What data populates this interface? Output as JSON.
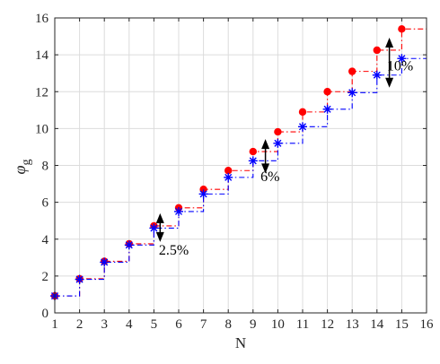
{
  "chart_data": {
    "type": "line",
    "xlabel": "N",
    "ylabel_symbol": "φ",
    "ylabel_subscript": "g",
    "xlim": [
      1,
      16
    ],
    "ylim": [
      0,
      16
    ],
    "xticks": [
      "1",
      "2",
      "3",
      "4",
      "5",
      "6",
      "7",
      "8",
      "9",
      "10",
      "11",
      "12",
      "13",
      "14",
      "15",
      "16"
    ],
    "yticks": [
      "0",
      "2",
      "4",
      "6",
      "8",
      "10",
      "12",
      "14",
      "16"
    ],
    "grid": true,
    "x": [
      1,
      2,
      3,
      4,
      5,
      6,
      7,
      8,
      9,
      10,
      11,
      12,
      13,
      14,
      15
    ],
    "series": [
      {
        "marker": "filled-circle",
        "color": "#ff0000",
        "line_style": "dash-dot step",
        "values": [
          0.92,
          1.85,
          2.8,
          3.75,
          4.72,
          5.7,
          6.7,
          7.72,
          8.75,
          9.82,
          10.9,
          12.0,
          13.1,
          14.25,
          15.4
        ]
      },
      {
        "marker": "asterisk",
        "color": "#0000ff",
        "line_style": "dash-dot step",
        "values": [
          0.92,
          1.82,
          2.75,
          3.68,
          4.6,
          5.5,
          6.45,
          7.35,
          8.25,
          9.2,
          10.1,
          11.05,
          11.95,
          12.9,
          13.8
        ]
      }
    ],
    "annotations": [
      {
        "text": "2.5%",
        "x": 5.25,
        "y_from": 4.65,
        "y_to": 4.6,
        "text_x": 5.2,
        "text_y": 3.4
      },
      {
        "text": "6%",
        "x": 9.5,
        "y_from": 8.75,
        "y_to": 8.25,
        "text_x": 9.3,
        "text_y": 7.4
      },
      {
        "text": "10%",
        "x": 14.5,
        "y_from": 14.25,
        "y_to": 12.9,
        "text_x": 14.4,
        "text_y": 13.4
      }
    ]
  }
}
